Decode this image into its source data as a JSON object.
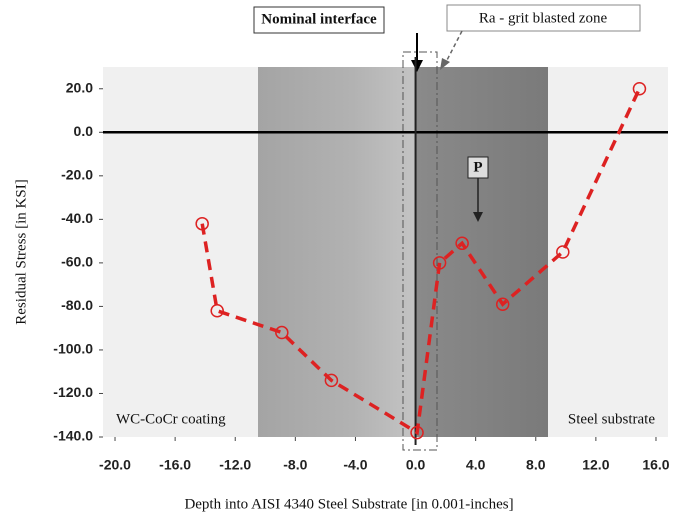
{
  "chart_data": {
    "type": "line",
    "x_label": "Depth into AISI 4340 Steel Substrate [in 0.001-inches]",
    "y_label": "Residual Stress [in KSI]",
    "x": [
      -14.2,
      -13.2,
      -8.9,
      -5.6,
      0.1,
      1.6,
      3.1,
      5.8,
      9.8,
      14.9
    ],
    "values": [
      -42,
      -82,
      -92,
      -114,
      -138,
      -60,
      -51,
      -79,
      -55,
      20
    ],
    "color": "#dd2222",
    "xlim": [
      -20.8,
      16.8
    ],
    "ylim": [
      -140,
      30
    ],
    "xticks": [
      {
        "value": -20,
        "label": "-20.0"
      },
      {
        "value": -16,
        "label": "-16.0"
      },
      {
        "value": -12,
        "label": "-12.0"
      },
      {
        "value": -8,
        "label": "-8.0"
      },
      {
        "value": -4,
        "label": "-4.0"
      },
      {
        "value": 0,
        "label": "0.0"
      },
      {
        "value": 4,
        "label": "4.0"
      },
      {
        "value": 8,
        "label": "8.0"
      },
      {
        "value": 12,
        "label": "12.0"
      },
      {
        "value": 16,
        "label": "16.0"
      }
    ],
    "yticks": [
      {
        "value": 20,
        "label": "20.0"
      },
      {
        "value": 0,
        "label": "0.0"
      },
      {
        "value": -20,
        "label": "-20.0"
      },
      {
        "value": -40,
        "label": "-40.0"
      },
      {
        "value": -60,
        "label": "-60.0"
      },
      {
        "value": -80,
        "label": "-80.0"
      },
      {
        "value": -100,
        "label": "-100.0"
      },
      {
        "value": -120,
        "label": "-120.0"
      },
      {
        "value": -140,
        "label": "-140.0"
      }
    ],
    "annotations": [
      "Nominal interface",
      "Ra - grit blasted zone",
      "P",
      "WC-CoCr coating",
      "Steel substrate"
    ]
  }
}
